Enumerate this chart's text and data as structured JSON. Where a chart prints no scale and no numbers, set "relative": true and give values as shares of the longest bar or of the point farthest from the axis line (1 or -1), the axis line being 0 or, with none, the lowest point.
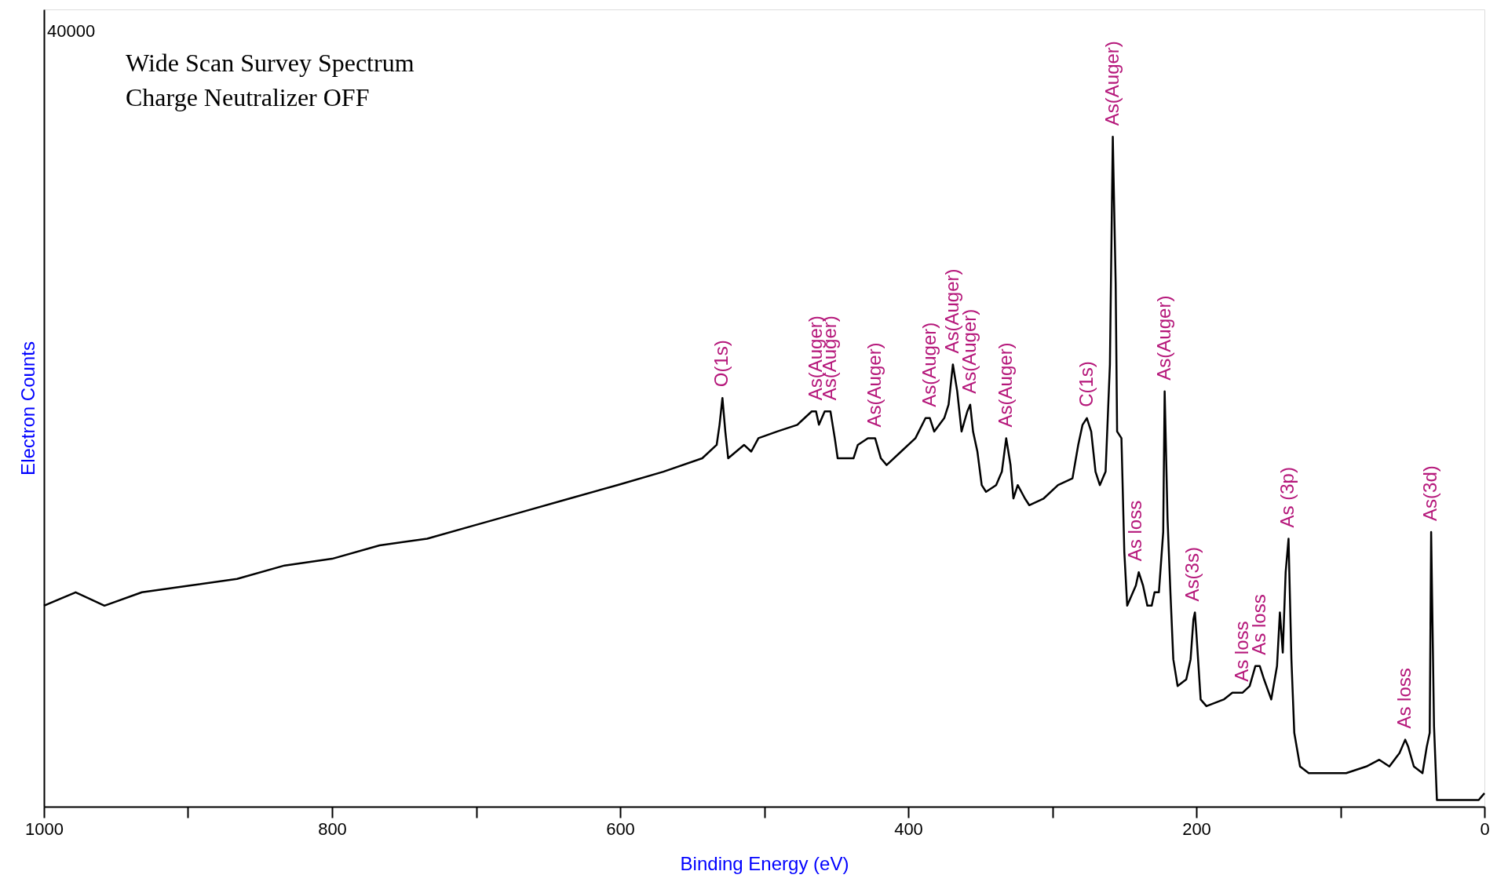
{
  "chart_data": {
    "type": "line",
    "title": "Wide Scan Survey Spectrum",
    "subtitle": "Charge Neutralizer OFF",
    "xlabel": "Binding Energy (eV)",
    "ylabel": "Electron Counts",
    "relative": true,
    "xlim": [
      1000,
      0
    ],
    "xticks": [
      1000,
      {
        "value": 900,
        "label": null
      },
      800,
      {
        "value": 700,
        "label": null
      },
      600,
      {
        "value": 500,
        "label": null
      },
      400,
      {
        "value": 300,
        "label": null
      },
      200,
      {
        "value": 100,
        "label": null
      },
      0
    ],
    "grid": false,
    "marker": "none",
    "line_style": "solid",
    "series": [
      {
        "color": "#000000",
        "x": [
          1000,
          978,
          958,
          932,
          899,
          866,
          833,
          800,
          767,
          734,
          701,
          668,
          635,
          602,
          570,
          543,
          533,
          531,
          529,
          527,
          525,
          514,
          509,
          504,
          491,
          477,
          467,
          464,
          462,
          458,
          454,
          451,
          449,
          438,
          435,
          428,
          423,
          419,
          415,
          405,
          395,
          388,
          385,
          382,
          375,
          372,
          369,
          366,
          363,
          359,
          357,
          355,
          352,
          349,
          346,
          339,
          335,
          332,
          329,
          327,
          324,
          319,
          316,
          306,
          296,
          286,
          282,
          279,
          276,
          273,
          270,
          267,
          263,
          260,
          258,
          256,
          255,
          252,
          250,
          248,
          246,
          242,
          240,
          237,
          234,
          231,
          229,
          226,
          223,
          222,
          220,
          218,
          216,
          213,
          207,
          204,
          202,
          201,
          200,
          197,
          193,
          181,
          175,
          168,
          163,
          159,
          156,
          153,
          148,
          144,
          142,
          140,
          138,
          136,
          134,
          132,
          128,
          122,
          109,
          96,
          82,
          73,
          66,
          59,
          55,
          53,
          49,
          43,
          40,
          38,
          37,
          35,
          33,
          23,
          10,
          4,
          0
        ],
        "values": [
          0.3,
          0.32,
          0.3,
          0.32,
          0.33,
          0.34,
          0.36,
          0.37,
          0.39,
          0.4,
          0.42,
          0.44,
          0.46,
          0.48,
          0.5,
          0.52,
          0.54,
          0.57,
          0.61,
          0.56,
          0.52,
          0.54,
          0.53,
          0.55,
          0.56,
          0.57,
          0.59,
          0.59,
          0.57,
          0.59,
          0.59,
          0.55,
          0.52,
          0.52,
          0.54,
          0.55,
          0.55,
          0.52,
          0.51,
          0.53,
          0.55,
          0.58,
          0.58,
          0.56,
          0.58,
          0.6,
          0.66,
          0.62,
          0.56,
          0.59,
          0.6,
          0.56,
          0.53,
          0.48,
          0.47,
          0.48,
          0.5,
          0.55,
          0.51,
          0.46,
          0.48,
          0.46,
          0.45,
          0.46,
          0.48,
          0.49,
          0.54,
          0.57,
          0.58,
          0.56,
          0.5,
          0.48,
          0.5,
          0.66,
          1.0,
          0.78,
          0.56,
          0.55,
          0.38,
          0.3,
          0.31,
          0.33,
          0.35,
          0.33,
          0.3,
          0.3,
          0.32,
          0.32,
          0.41,
          0.62,
          0.43,
          0.32,
          0.22,
          0.18,
          0.19,
          0.22,
          0.28,
          0.29,
          0.26,
          0.16,
          0.15,
          0.16,
          0.17,
          0.17,
          0.18,
          0.21,
          0.21,
          0.19,
          0.16,
          0.21,
          0.29,
          0.23,
          0.35,
          0.4,
          0.22,
          0.11,
          0.06,
          0.05,
          0.05,
          0.05,
          0.06,
          0.07,
          0.06,
          0.08,
          0.1,
          0.09,
          0.06,
          0.05,
          0.09,
          0.11,
          0.41,
          0.12,
          0.01,
          0.01,
          0.01,
          0.01,
          0.02
        ]
      }
    ],
    "annotations": [
      "40000",
      {
        "text": "O(1s)",
        "x": 529,
        "y": 0.61
      },
      {
        "text": "As(Auger)",
        "x": 464,
        "y": 0.59
      },
      {
        "text": "As(Auger)",
        "x": 454,
        "y": 0.59
      },
      {
        "text": "As(Auger)",
        "x": 423,
        "y": 0.55
      },
      {
        "text": "As(Auger)",
        "x": 385,
        "y": 0.58
      },
      {
        "text": "As(Auger)",
        "x": 369,
        "y": 0.66
      },
      {
        "text": "As(Auger)",
        "x": 357,
        "y": 0.6
      },
      {
        "text": "As(Auger)",
        "x": 332,
        "y": 0.55
      },
      {
        "text": "C(1s)",
        "x": 276,
        "y": 0.58
      },
      {
        "text": "As(Auger)",
        "x": 258,
        "y": 1.0
      },
      {
        "text": "As(Auger)",
        "x": 222,
        "y": 0.62
      },
      {
        "text": "As loss",
        "x": 242,
        "y": 0.35
      },
      {
        "text": "As(3s)",
        "x": 202,
        "y": 0.29
      },
      {
        "text": "As loss",
        "x": 168,
        "y": 0.17
      },
      {
        "text": "As loss",
        "x": 156,
        "y": 0.21
      },
      {
        "text": "As (3p)",
        "x": 136,
        "y": 0.4
      },
      {
        "text": "As loss",
        "x": 55,
        "y": 0.1
      },
      {
        "text": "As(3d)",
        "x": 37,
        "y": 0.41
      }
    ]
  }
}
